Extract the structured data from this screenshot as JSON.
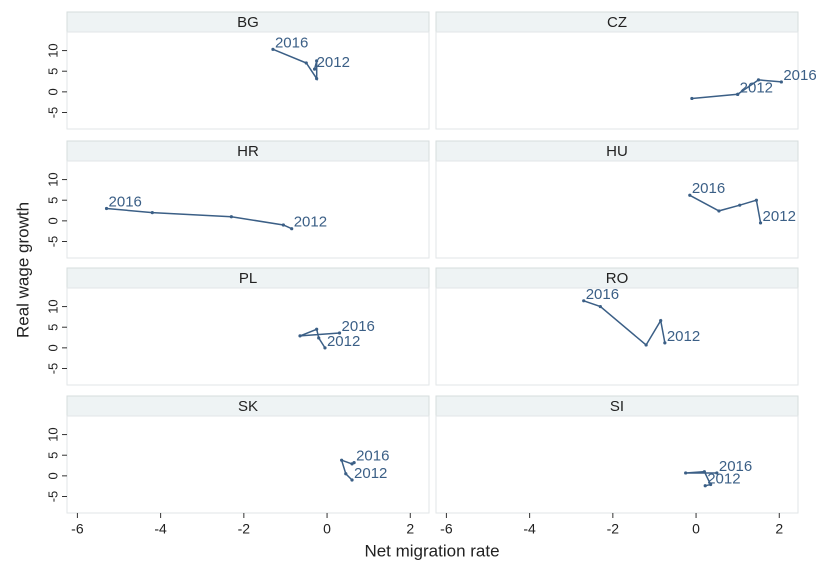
{
  "chart_data": [
    {
      "type": "line",
      "title": "BG",
      "x": [
        -0.3,
        -0.25,
        -0.25,
        -0.5,
        -1.3
      ],
      "y": [
        5.5,
        7.5,
        3.2,
        7,
        10.3
      ],
      "point_labels": [
        "2012",
        null,
        null,
        null,
        "2016"
      ]
    },
    {
      "type": "line",
      "title": "CZ",
      "x": [
        1.0,
        -0.1,
        1.0,
        1.5,
        2.05
      ],
      "y": [
        -0.6,
        -1.6,
        -0.6,
        2.9,
        2.4
      ],
      "point_labels": [
        "2012",
        null,
        null,
        null,
        "2016"
      ]
    },
    {
      "type": "line",
      "title": "HR",
      "x": [
        -0.85,
        -1.05,
        -2.3,
        -4.2,
        -5.3
      ],
      "y": [
        -1.9,
        -1,
        1,
        2,
        3
      ],
      "point_labels": [
        "2012",
        null,
        null,
        null,
        "2016"
      ]
    },
    {
      "type": "line",
      "title": "HU",
      "x": [
        1.55,
        1.45,
        1.05,
        0.55,
        -0.15
      ],
      "y": [
        -0.5,
        5,
        3.8,
        2.4,
        6.2
      ],
      "point_labels": [
        "2012",
        null,
        null,
        null,
        "2016"
      ]
    },
    {
      "type": "line",
      "title": "PL",
      "x": [
        -0.05,
        -0.2,
        -0.25,
        -0.65,
        0.3
      ],
      "y": [
        0,
        2.4,
        4.5,
        2.9,
        3.6
      ],
      "point_labels": [
        "2012",
        null,
        null,
        null,
        "2016"
      ]
    },
    {
      "type": "line",
      "title": "RO",
      "x": [
        -0.75,
        -0.85,
        -1.2,
        -2.3,
        -2.7
      ],
      "y": [
        1.2,
        6.6,
        0.7,
        10,
        11.4
      ],
      "point_labels": [
        "2012",
        null,
        null,
        null,
        "2016"
      ]
    },
    {
      "type": "line",
      "title": "SK",
      "x": [
        0.6,
        0.45,
        0.35,
        0.6,
        0.65
      ],
      "y": [
        -1,
        0.5,
        3.8,
        2.9,
        3.2
      ],
      "point_labels": [
        "2012",
        null,
        null,
        null,
        "2016"
      ]
    },
    {
      "type": "line",
      "title": "SI",
      "x": [
        0.22,
        0.35,
        0.2,
        -0.25,
        0.5
      ],
      "y": [
        -2.4,
        -2.1,
        1,
        0.7,
        0.7
      ],
      "point_labels": [
        "2012",
        null,
        null,
        null,
        "2016"
      ]
    }
  ],
  "xlabel": "Net migration rate",
  "ylabel": "Real wage growth",
  "xlim": [
    -6.25,
    2.45
  ],
  "xticks": [
    -6,
    -4,
    -2,
    0,
    2
  ],
  "ylim": [
    -9,
    14.5
  ],
  "yticks": [
    -5,
    0,
    5,
    10
  ],
  "color": "#3b5f86"
}
